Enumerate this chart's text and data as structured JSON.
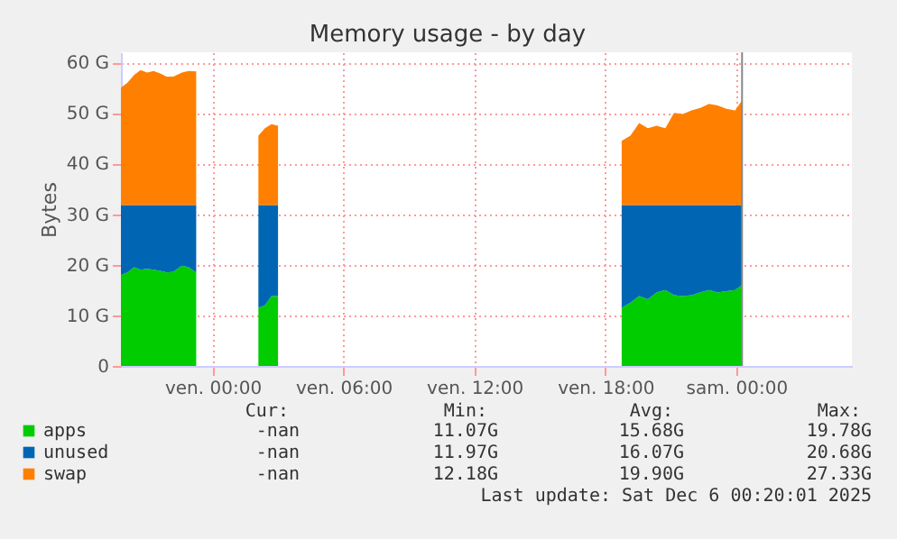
{
  "chart_data": {
    "type": "area",
    "stacked": true,
    "title": "Memory usage - by day",
    "ylabel": "Bytes",
    "x": [
      "2025-12-04T19:48",
      "2025-12-04T20:06",
      "2025-12-04T20:24",
      "2025-12-04T20:42",
      "2025-12-04T21:00",
      "2025-12-04T21:18",
      "2025-12-04T21:36",
      "2025-12-04T21:54",
      "2025-12-04T22:12",
      "2025-12-04T22:36",
      "2025-12-04T22:54",
      "2025-12-04T23:15",
      "2025-12-05T00:30",
      "2025-12-05T02:06",
      "2025-12-05T02:24",
      "2025-12-05T02:42",
      "2025-12-05T03:00",
      "2025-12-05T10:00",
      "2025-12-05T18:45",
      "2025-12-05T19:09",
      "2025-12-05T19:33",
      "2025-12-05T19:57",
      "2025-12-05T20:21",
      "2025-12-05T20:45",
      "2025-12-05T21:09",
      "2025-12-05T21:33",
      "2025-12-05T21:57",
      "2025-12-05T22:21",
      "2025-12-05T22:45",
      "2025-12-05T23:09",
      "2025-12-05T23:33",
      "2025-12-05T23:57",
      "2025-12-06T00:16"
    ],
    "series": [
      {
        "name": "apps",
        "color": "#00cc00",
        "values": [
          18.0,
          18.5,
          19.5,
          19.0,
          19.2,
          19.0,
          18.8,
          18.5,
          18.6,
          19.8,
          19.5,
          18.5,
          null,
          11.5,
          12.0,
          13.8,
          13.8,
          null,
          11.5,
          12.5,
          13.8,
          13.2,
          14.5,
          15.0,
          14.0,
          13.8,
          14.0,
          14.5,
          15.0,
          14.5,
          14.8,
          15.0,
          16.0
        ]
      },
      {
        "name": "unused",
        "color": "#0066b3",
        "values": [
          13.8,
          13.3,
          12.3,
          12.8,
          12.6,
          12.8,
          13.0,
          13.3,
          13.2,
          12.0,
          12.3,
          13.3,
          null,
          20.3,
          19.8,
          18.0,
          18.0,
          null,
          20.3,
          19.3,
          18.0,
          18.6,
          17.3,
          16.8,
          17.8,
          18.0,
          17.8,
          17.3,
          16.8,
          17.3,
          17.0,
          16.8,
          15.8
        ]
      },
      {
        "name": "swap",
        "color": "#ff8000",
        "values": [
          23.2,
          24.2,
          25.7,
          26.7,
          26.2,
          26.5,
          26.0,
          25.4,
          25.4,
          26.2,
          26.5,
          26.4,
          null,
          13.7,
          15.2,
          16.0,
          15.7,
          null,
          12.7,
          13.7,
          16.2,
          15.2,
          15.7,
          15.2,
          18.2,
          18.0,
          18.7,
          19.2,
          20.0,
          19.7,
          19.0,
          18.7,
          20.7
        ]
      }
    ],
    "xlim": [
      "2025-12-04T19:48",
      "2025-12-06T05:18"
    ],
    "xticks": [
      {
        "value": "2025-12-05T00:00",
        "label": "ven. 00:00"
      },
      {
        "value": "2025-12-05T06:00",
        "label": "ven. 06:00"
      },
      {
        "value": "2025-12-05T12:00",
        "label": "ven. 12:00"
      },
      {
        "value": "2025-12-05T18:00",
        "label": "ven. 18:00"
      },
      {
        "value": "2025-12-06T00:00",
        "label": "sam. 00:00"
      }
    ],
    "ylim": [
      0,
      62
    ],
    "yticks": [
      {
        "value": 0,
        "label": "0"
      },
      {
        "value": 10,
        "label": "10 G"
      },
      {
        "value": 20,
        "label": "20 G"
      },
      {
        "value": 30,
        "label": "30 G"
      },
      {
        "value": 40,
        "label": "40 G"
      },
      {
        "value": 50,
        "label": "50 G"
      },
      {
        "value": 60,
        "label": "60 G"
      }
    ],
    "ref_lines": [
      {
        "axis": "x",
        "value": "2025-12-06T00:16",
        "color": "#888888"
      }
    ],
    "grid": true,
    "legend": "bottom",
    "annotations": [
      "Cur:",
      "Min:",
      "Avg:",
      "Max:",
      "-nan",
      "11.07G",
      "15.68G",
      "19.78G",
      "-nan",
      "11.97G",
      "16.07G",
      "20.68G",
      "-nan",
      "12.18G",
      "19.90G",
      "27.33G",
      "Last update: Sat Dec  6 00:20:01 2025"
    ]
  }
}
